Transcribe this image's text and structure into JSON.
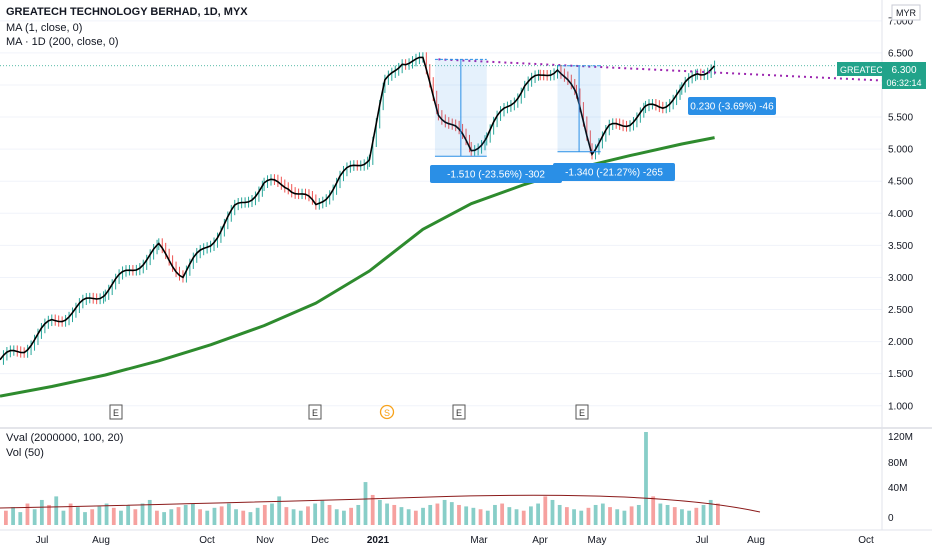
{
  "header": {
    "title": "GREATECH TECHNOLOGY BERHAD, 1D, MYX",
    "ma1": "MA (1, close, 0)",
    "ma2": "MA · 1D (200, close, 0)",
    "vval": "Vval (2000000, 100, 20)",
    "vol": "Vol (50)"
  },
  "currency": "MYR",
  "price_tag": {
    "symbol": "GREATEC",
    "price": "6.300",
    "countdown": "06:32:14"
  },
  "colors": {
    "up": "#26a69a",
    "down": "#ef5350",
    "ma200": "#2e8b2e",
    "trend": "#9c27b0",
    "accent": "#2a8fe6",
    "tag": "#22a38a"
  },
  "annotations": [
    {
      "label": "-1.510 (-23.56%) -302"
    },
    {
      "label": "-1.340 (-21.27%) -265"
    },
    {
      "label": "0.230 (-3.69%) -46"
    }
  ],
  "event_markers": [
    "E",
    "E",
    "S",
    "E",
    "E"
  ],
  "chart_data": [
    {
      "type": "line",
      "series": [
        {
          "name": "MA (1, close, 0)",
          "x": [
            "2020-06-01",
            "2020-06-15",
            "2020-07-01",
            "2020-07-15",
            "2020-08-01",
            "2020-08-15",
            "2020-09-01",
            "2020-09-15",
            "2020-10-01",
            "2020-10-15",
            "2020-11-01",
            "2020-11-15",
            "2020-12-01",
            "2020-12-15",
            "2021-01-01",
            "2021-01-10",
            "2021-01-20",
            "2021-02-01",
            "2021-02-10",
            "2021-02-20",
            "2021-03-01",
            "2021-03-10",
            "2021-03-20",
            "2021-04-01",
            "2021-04-10",
            "2021-04-20",
            "2021-05-01",
            "2021-05-10",
            "2021-05-20",
            "2021-06-01",
            "2021-06-10",
            "2021-06-20",
            "2021-07-01",
            "2021-07-10",
            "2021-07-20"
          ],
          "values": [
            1.7,
            1.9,
            2.3,
            2.5,
            2.8,
            3.1,
            3.45,
            3.05,
            3.55,
            4.05,
            4.45,
            4.45,
            4.1,
            4.55,
            4.9,
            6.0,
            6.4,
            6.35,
            5.6,
            5.3,
            5.0,
            5.2,
            5.6,
            6.0,
            6.1,
            6.3,
            5.8,
            5.0,
            5.3,
            5.45,
            5.6,
            5.7,
            5.9,
            6.2,
            6.3
          ]
        },
        {
          "name": "MA · 1D (200, close, 0)",
          "x": [
            "2020-06-01",
            "2020-07-01",
            "2020-08-01",
            "2020-09-01",
            "2020-10-01",
            "2020-11-01",
            "2020-12-01",
            "2021-01-01",
            "2021-02-01",
            "2021-03-01",
            "2021-04-01",
            "2021-05-01",
            "2021-06-01",
            "2021-07-01",
            "2021-07-20"
          ],
          "values": [
            1.15,
            1.3,
            1.48,
            1.7,
            1.95,
            2.25,
            2.6,
            3.1,
            3.75,
            4.15,
            4.45,
            4.7,
            4.9,
            5.08,
            5.18
          ]
        }
      ],
      "x_ticks": [
        "Jul",
        "Aug",
        "Oct",
        "Nov",
        "Dec",
        "2021",
        "Mar",
        "Apr",
        "May",
        "Jul",
        "Aug",
        "Oct"
      ],
      "y_ticks": [
        "1.000",
        "1.500",
        "2.000",
        "2.500",
        "3.000",
        "3.500",
        "4.000",
        "4.500",
        "5.000",
        "5.500",
        "6.000",
        "6.500",
        "7.000"
      ],
      "ylim": [
        0.7,
        7.2
      ],
      "xlabel": "",
      "ylabel": "",
      "grid": true
    },
    {
      "type": "bar",
      "series": [
        {
          "name": "Vol (50)"
        }
      ],
      "values": [
        20,
        25,
        18,
        30,
        22,
        35,
        28,
        40,
        20,
        30,
        25,
        18,
        22,
        26,
        30,
        24,
        20,
        28,
        22,
        30,
        35,
        20,
        18,
        22,
        25,
        28,
        30,
        22,
        20,
        24,
        26,
        30,
        22,
        20,
        18,
        24,
        28,
        30,
        40,
        25,
        22,
        20,
        26,
        30,
        34,
        28,
        22,
        20,
        24,
        28,
        60,
        42,
        35,
        30,
        28,
        25,
        22,
        20,
        24,
        28,
        30,
        35,
        32,
        28,
        26,
        24,
        22,
        20,
        28,
        30,
        25,
        22,
        20,
        26,
        30,
        40,
        35,
        28,
        25,
        22,
        20,
        24,
        28,
        30,
        25,
        22,
        20,
        26,
        28,
        130,
        40,
        30,
        28,
        25,
        22,
        20,
        24,
        28,
        35,
        30
      ],
      "y_ticks": [
        "0",
        "40M",
        "80M",
        "120M"
      ],
      "ylim": [
        0,
        130
      ]
    }
  ]
}
